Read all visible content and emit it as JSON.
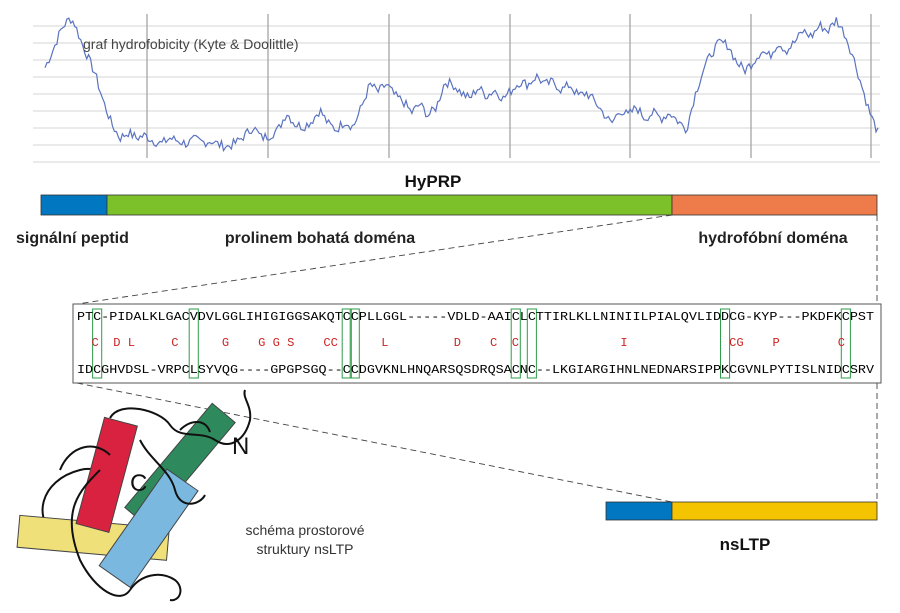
{
  "hydrophobicity": {
    "label": "graf hydrofobicity (Kyte & Doolittle)",
    "line_color": "#5a73c0",
    "profile": [
      [
        0,
        0.62
      ],
      [
        0.01,
        0.75
      ],
      [
        0.02,
        0.9
      ],
      [
        0.03,
        0.97
      ],
      [
        0.035,
        0.94
      ],
      [
        0.045,
        0.78
      ],
      [
        0.06,
        0.58
      ],
      [
        0.07,
        0.38
      ],
      [
        0.08,
        0.22
      ],
      [
        0.09,
        0.12
      ],
      [
        0.1,
        0.16
      ],
      [
        0.11,
        0.12
      ],
      [
        0.12,
        0.14
      ],
      [
        0.13,
        0.1
      ],
      [
        0.14,
        0.08
      ],
      [
        0.15,
        0.12
      ],
      [
        0.16,
        0.1
      ],
      [
        0.17,
        0.08
      ],
      [
        0.18,
        0.11
      ],
      [
        0.19,
        0.09
      ],
      [
        0.2,
        0.1
      ],
      [
        0.21,
        0.07
      ],
      [
        0.22,
        0.06
      ],
      [
        0.23,
        0.09
      ],
      [
        0.24,
        0.14
      ],
      [
        0.25,
        0.2
      ],
      [
        0.26,
        0.12
      ],
      [
        0.27,
        0.14
      ],
      [
        0.28,
        0.18
      ],
      [
        0.29,
        0.3
      ],
      [
        0.3,
        0.22
      ],
      [
        0.31,
        0.2
      ],
      [
        0.32,
        0.24
      ],
      [
        0.33,
        0.32
      ],
      [
        0.34,
        0.22
      ],
      [
        0.35,
        0.18
      ],
      [
        0.36,
        0.24
      ],
      [
        0.37,
        0.2
      ],
      [
        0.38,
        0.34
      ],
      [
        0.39,
        0.5
      ],
      [
        0.4,
        0.45
      ],
      [
        0.41,
        0.5
      ],
      [
        0.42,
        0.42
      ],
      [
        0.43,
        0.38
      ],
      [
        0.44,
        0.3
      ],
      [
        0.45,
        0.36
      ],
      [
        0.46,
        0.28
      ],
      [
        0.47,
        0.34
      ],
      [
        0.48,
        0.52
      ],
      [
        0.49,
        0.5
      ],
      [
        0.5,
        0.44
      ],
      [
        0.51,
        0.4
      ],
      [
        0.52,
        0.48
      ],
      [
        0.53,
        0.42
      ],
      [
        0.54,
        0.46
      ],
      [
        0.55,
        0.4
      ],
      [
        0.56,
        0.46
      ],
      [
        0.57,
        0.52
      ],
      [
        0.58,
        0.5
      ],
      [
        0.59,
        0.56
      ],
      [
        0.6,
        0.5
      ],
      [
        0.61,
        0.52
      ],
      [
        0.62,
        0.46
      ],
      [
        0.63,
        0.5
      ],
      [
        0.64,
        0.42
      ],
      [
        0.65,
        0.44
      ],
      [
        0.66,
        0.38
      ],
      [
        0.67,
        0.3
      ],
      [
        0.68,
        0.22
      ],
      [
        0.69,
        0.32
      ],
      [
        0.7,
        0.28
      ],
      [
        0.71,
        0.34
      ],
      [
        0.72,
        0.26
      ],
      [
        0.73,
        0.3
      ],
      [
        0.74,
        0.26
      ],
      [
        0.75,
        0.3
      ],
      [
        0.76,
        0.24
      ],
      [
        0.77,
        0.18
      ],
      [
        0.78,
        0.42
      ],
      [
        0.79,
        0.6
      ],
      [
        0.8,
        0.72
      ],
      [
        0.81,
        0.8
      ],
      [
        0.82,
        0.78
      ],
      [
        0.83,
        0.66
      ],
      [
        0.84,
        0.6
      ],
      [
        0.85,
        0.66
      ],
      [
        0.86,
        0.74
      ],
      [
        0.87,
        0.7
      ],
      [
        0.88,
        0.8
      ],
      [
        0.89,
        0.74
      ],
      [
        0.9,
        0.8
      ],
      [
        0.91,
        0.88
      ],
      [
        0.92,
        0.84
      ],
      [
        0.93,
        0.92
      ],
      [
        0.94,
        0.88
      ],
      [
        0.95,
        0.96
      ],
      [
        0.96,
        0.86
      ],
      [
        0.97,
        0.7
      ],
      [
        0.98,
        0.5
      ],
      [
        0.99,
        0.3
      ],
      [
        1,
        0.16
      ]
    ]
  },
  "hyprp": {
    "title": "HyPRP",
    "segments": [
      {
        "label": "signální peptid",
        "color": "#0077c0",
        "fraction": 0.077
      },
      {
        "label": "prolinem bohatá doména",
        "color": "#7dc12a",
        "fraction": 0.677
      },
      {
        "label": "hydrofóbní doména",
        "color": "#ee7b4a",
        "fraction": 0.246
      }
    ]
  },
  "alignment": {
    "top": "PTC-PIDALKLGACVDVLGGLIHIGIGGSAKQTCCPLLGGL-----VDLD-AAICLCTTIRLKLLNINIILPIALQVLIDDCG-KYP---PKDFKCPST",
    "middle": "  C  D L     C      G    G G S    CC      L         D    C  C              I              CG    P        C    ",
    "bottom": "IDCGHVDSL-VRPCLSYVQG----GPGPSGQ--CCDGVKNLHNQARSQSDRQSACNC--LKGIARGIHNLNEDNARSIPPKCGVNLPYTISLNIDCSRV",
    "conserved_text_color": "#cc2222",
    "box_color": "#2e9c4a",
    "cysteine_box_columns": [
      2,
      14,
      33,
      34,
      54,
      56,
      80,
      95
    ]
  },
  "structure": {
    "n_label": "N",
    "c_label": "C",
    "caption_line1": "schéma prostorové",
    "caption_line2": "struktury nsLTP",
    "helices": [
      {
        "name": "helix-red",
        "color": "#d8223f"
      },
      {
        "name": "helix-green",
        "color": "#2e8a5c"
      },
      {
        "name": "helix-blue",
        "color": "#7ab8e0"
      },
      {
        "name": "helix-yellow",
        "color": "#f0e07a"
      }
    ]
  },
  "nsltp": {
    "title": "nsLTP",
    "segments": [
      {
        "label": "",
        "color": "#0077c0",
        "fraction": 0.242
      },
      {
        "label": "",
        "color": "#f5c400",
        "fraction": 0.758
      }
    ]
  }
}
